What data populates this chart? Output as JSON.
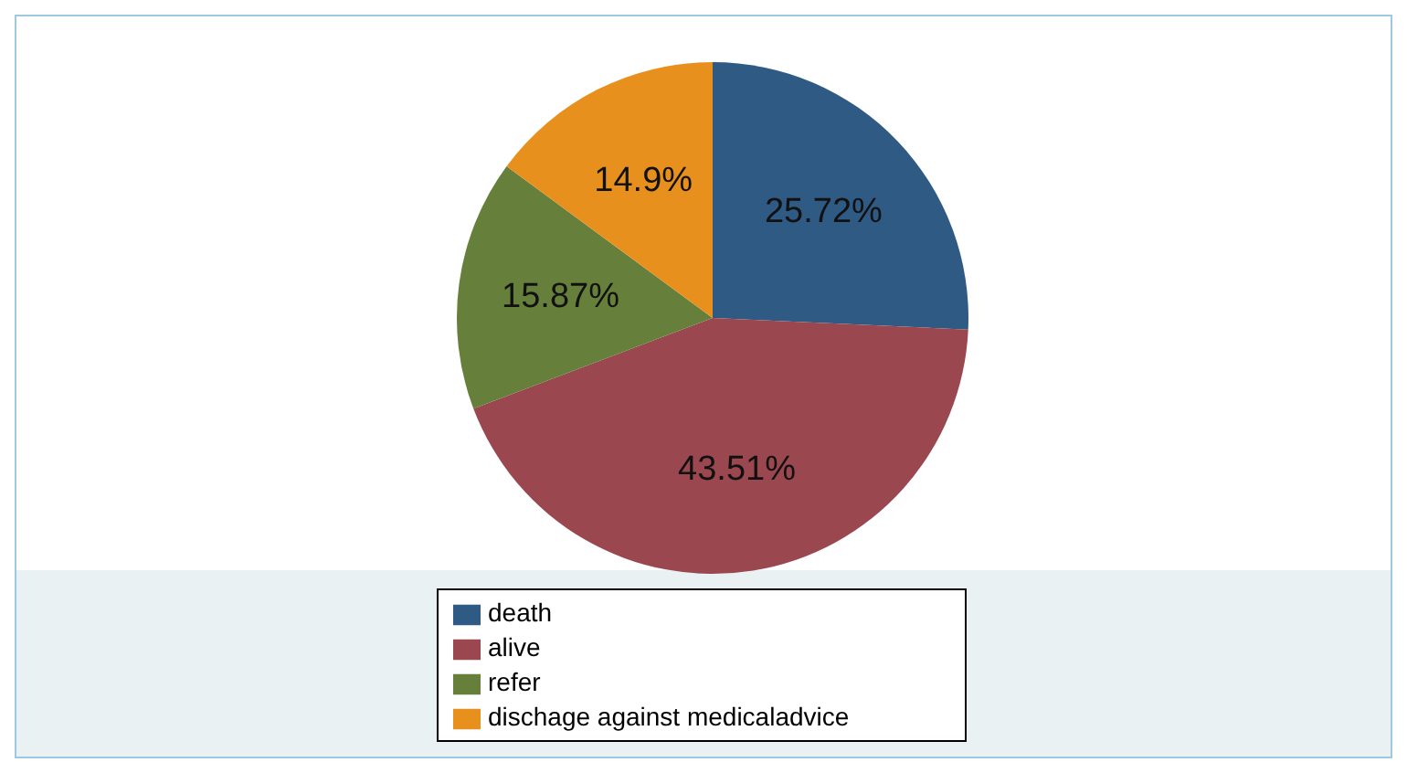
{
  "chart_data": {
    "type": "pie",
    "categories": [
      "death",
      "alive",
      "refer",
      "dischage against medicaladvice"
    ],
    "values": [
      25.72,
      43.51,
      15.87,
      14.9
    ],
    "colors": [
      "#2f5a84",
      "#9a4750",
      "#667f3b",
      "#e8901e"
    ],
    "value_labels": [
      "25.72%",
      "43.51%",
      "15.87%",
      "14.9%"
    ],
    "legend": "bottom"
  }
}
